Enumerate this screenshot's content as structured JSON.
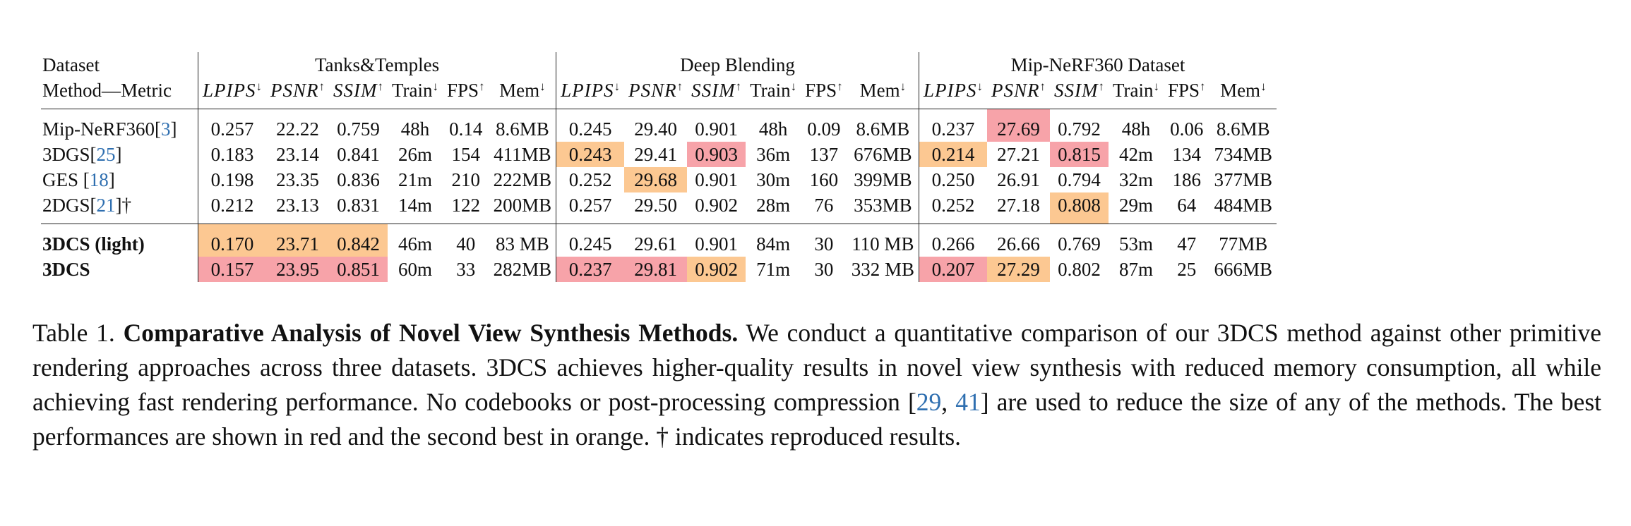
{
  "table": {
    "row_header": [
      "Dataset",
      "Method—Metric"
    ],
    "groups": [
      "Tanks&Temples",
      "Deep Blending",
      "Mip-NeRF360 Dataset"
    ],
    "metrics": [
      {
        "name": "LPIPS",
        "arrow": "↓",
        "italic": true
      },
      {
        "name": "PSNR",
        "arrow": "↑",
        "italic": true
      },
      {
        "name": "SSIM",
        "arrow": "↑",
        "italic": true
      },
      {
        "name": "Train",
        "arrow": "↓",
        "italic": false
      },
      {
        "name": "FPS",
        "arrow": "↑",
        "italic": false
      },
      {
        "name": "Mem",
        "arrow": "↓",
        "italic": false
      }
    ],
    "colors": {
      "best": "#f7a3a9",
      "second": "#fcc892",
      "link": "#2f6fb0"
    },
    "sections": [
      [
        {
          "method": [
            {
              "text": "Mip-NeRF360["
            },
            {
              "text": "3",
              "link": true
            },
            {
              "text": "]"
            }
          ],
          "bold": false,
          "cells": [
            "0.257",
            "22.22",
            "0.759",
            "48h",
            "0.14",
            "8.6MB",
            "0.245",
            "29.40",
            "0.901",
            "48h",
            "0.09",
            "8.6MB",
            "0.237",
            "27.69",
            "0.792",
            "48h",
            "0.06",
            "8.6MB"
          ],
          "highlight": {
            "13": "best"
          }
        },
        {
          "method": [
            {
              "text": "3DGS["
            },
            {
              "text": "25",
              "link": true
            },
            {
              "text": "]"
            }
          ],
          "bold": false,
          "cells": [
            "0.183",
            "23.14",
            "0.841",
            "26m",
            "154",
            "411MB",
            "0.243",
            "29.41",
            "0.903",
            "36m",
            "137",
            "676MB",
            "0.214",
            "27.21",
            "0.815",
            "42m",
            "134",
            "734MB"
          ],
          "highlight": {
            "6": "second",
            "8": "best",
            "12": "second",
            "14": "best"
          }
        },
        {
          "method": [
            {
              "text": "GES ["
            },
            {
              "text": "18",
              "link": true
            },
            {
              "text": "]"
            }
          ],
          "bold": false,
          "cells": [
            "0.198",
            "23.35",
            "0.836",
            "21m",
            "210",
            "222MB",
            "0.252",
            "29.68",
            "0.901",
            "30m",
            "160",
            "399MB",
            "0.250",
            "26.91",
            "0.794",
            "32m",
            "186",
            "377MB"
          ],
          "highlight": {
            "7": "second"
          }
        },
        {
          "method": [
            {
              "text": "2DGS["
            },
            {
              "text": "21",
              "link": true
            },
            {
              "text": "]†"
            }
          ],
          "bold": false,
          "cells": [
            "0.212",
            "23.13",
            "0.831",
            "14m",
            "122",
            "200MB",
            "0.257",
            "29.50",
            "0.902",
            "28m",
            "76",
            "353MB",
            "0.252",
            "27.18",
            "0.808",
            "29m",
            "64",
            "484MB"
          ],
          "highlight": {
            "14": "second"
          }
        }
      ],
      [
        {
          "method": [
            {
              "text": "3DCS (light)"
            }
          ],
          "bold": true,
          "cells": [
            "0.170",
            "23.71",
            "0.842",
            "46m",
            "40",
            "83 MB",
            "0.245",
            "29.61",
            "0.901",
            "84m",
            "30",
            "110 MB",
            "0.266",
            "26.66",
            "0.769",
            "53m",
            "47",
            "77MB"
          ],
          "highlight": {
            "0": "second",
            "1": "second",
            "2": "second"
          }
        },
        {
          "method": [
            {
              "text": "3DCS"
            }
          ],
          "bold": true,
          "cells": [
            "0.157",
            "23.95",
            "0.851",
            "60m",
            "33",
            "282MB",
            "0.237",
            "29.81",
            "0.902",
            "71m",
            "30",
            "332 MB",
            "0.207",
            "27.29",
            "0.802",
            "87m",
            "25",
            "666MB"
          ],
          "highlight": {
            "0": "best",
            "1": "best",
            "2": "best",
            "6": "best",
            "7": "best",
            "8": "second",
            "12": "best",
            "13": "second"
          }
        }
      ]
    ]
  },
  "caption": [
    {
      "text": "Table 1. "
    },
    {
      "text": "Comparative Analysis of Novel View Synthesis Methods.",
      "bold": true
    },
    {
      "text": " We conduct a quantitative comparison of our 3DCS method against other primitive rendering approaches across three datasets.  3DCS achieves higher-quality results in novel view synthesis with reduced memory consumption, all while achieving fast rendering performance.  No codebooks or post-processing compression ["
    },
    {
      "text": "29",
      "link": true
    },
    {
      "text": ", "
    },
    {
      "text": "41",
      "link": true
    },
    {
      "text": "] are used to reduce the size of any of the methods.  The best performances are shown in red and the second best in orange.  † indicates reproduced results."
    }
  ]
}
